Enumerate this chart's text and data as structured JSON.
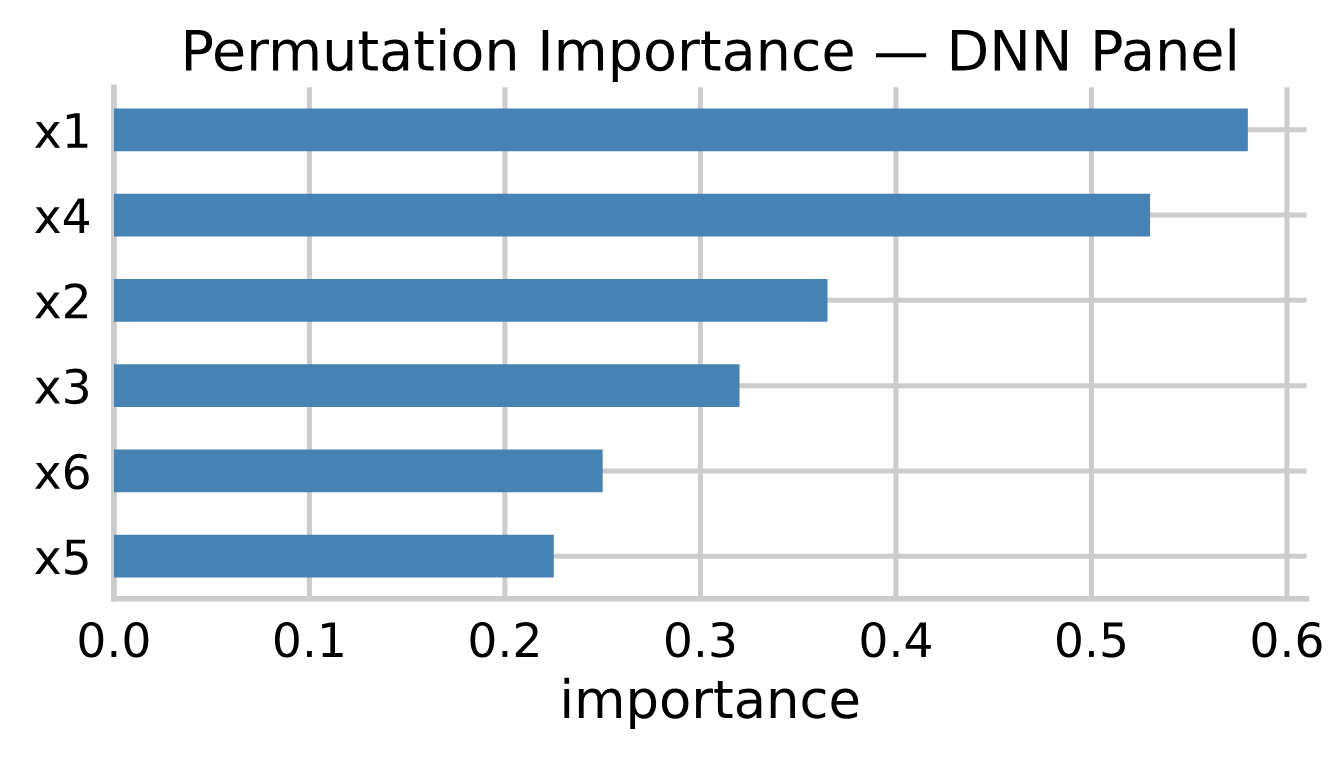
{
  "chart_data": {
    "type": "bar",
    "orientation": "horizontal",
    "title": "Permutation Importance — DNN Panel",
    "xlabel": "importance",
    "categories": [
      "x1",
      "x4",
      "x2",
      "x3",
      "x6",
      "x5"
    ],
    "values": [
      0.58,
      0.53,
      0.365,
      0.32,
      0.25,
      0.225
    ],
    "color": "#4682b4",
    "xlim": [
      0,
      0.61
    ],
    "xticks": [
      {
        "value": 0,
        "label": "0.0"
      },
      0.1,
      0.2,
      0.3,
      0.4,
      0.5,
      0.6
    ],
    "grid": true,
    "legend": false
  }
}
